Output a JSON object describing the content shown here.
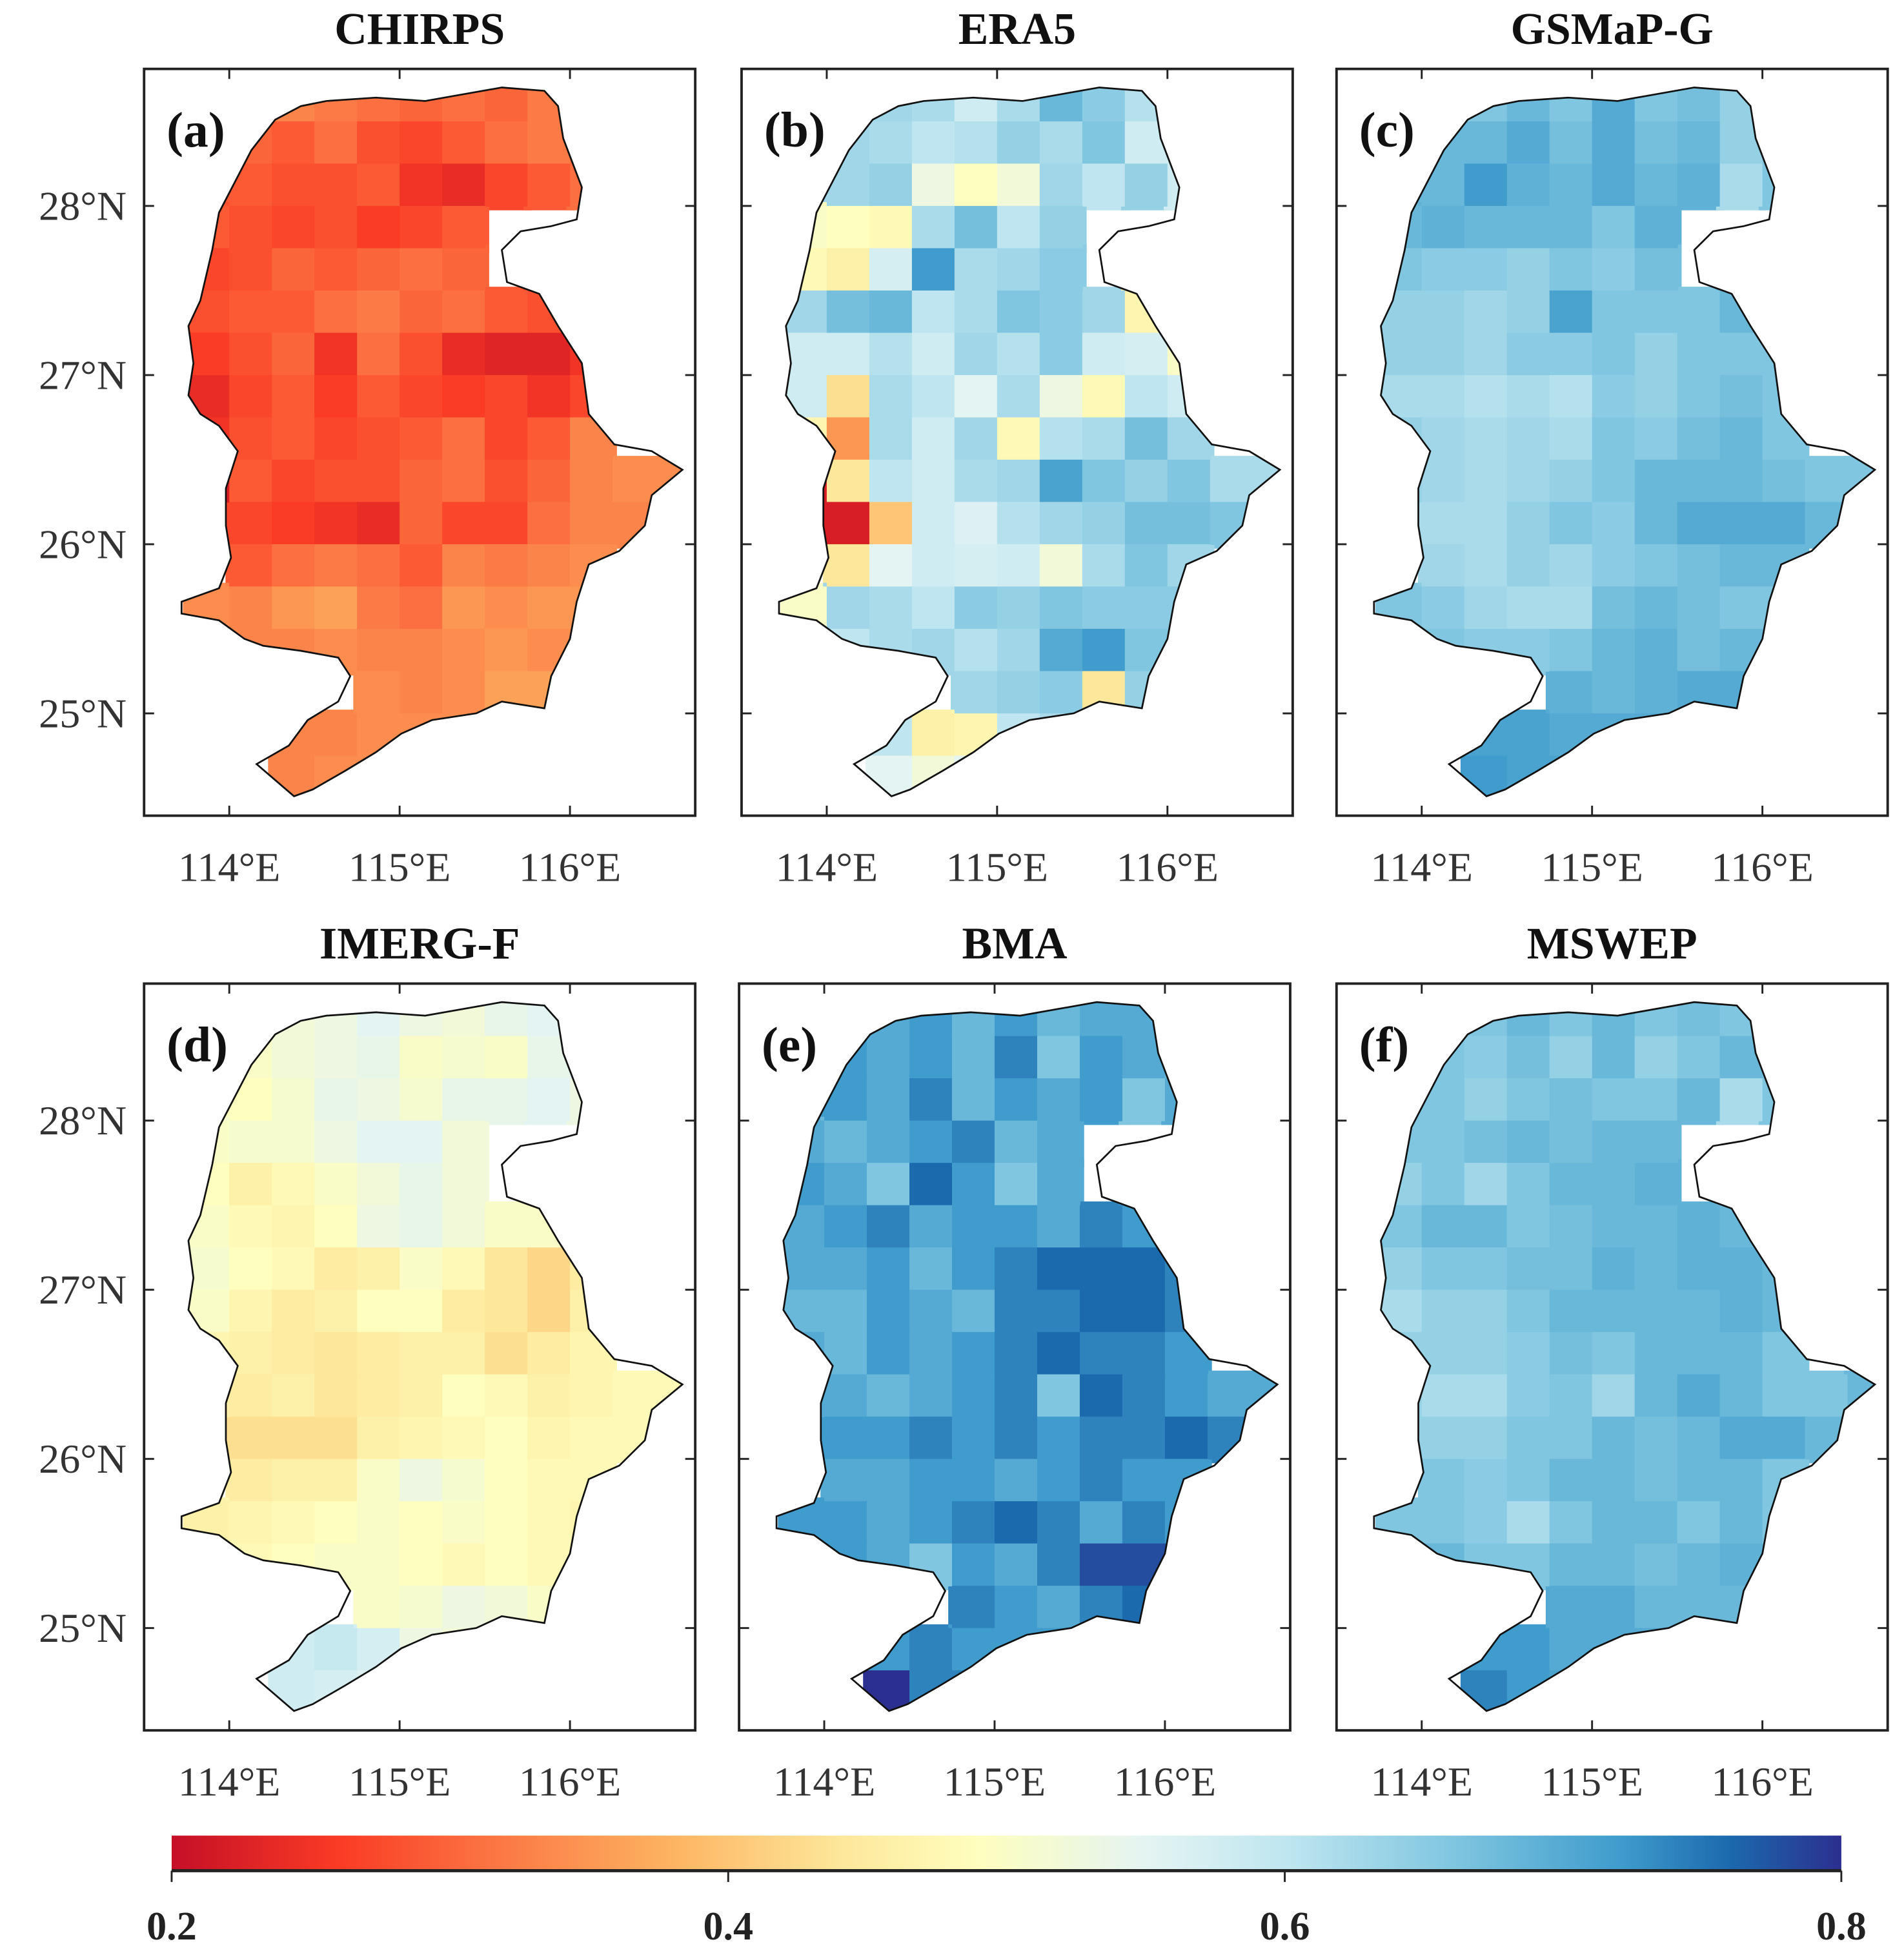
{
  "colorbar": {
    "min": 0.2,
    "max": 0.8,
    "ticks": [
      "0.2",
      "0.4",
      "0.6",
      "0.8"
    ],
    "stops": [
      [
        0.2,
        "#c50f27"
      ],
      [
        0.26,
        "#fa3b25"
      ],
      [
        0.32,
        "#fb7a45"
      ],
      [
        0.38,
        "#fdb462"
      ],
      [
        0.44,
        "#fde79a"
      ],
      [
        0.49,
        "#fefebe"
      ],
      [
        0.55,
        "#e4f4f2"
      ],
      [
        0.6,
        "#bfe6f0"
      ],
      [
        0.66,
        "#80c6e0"
      ],
      [
        0.72,
        "#3f9ccc"
      ],
      [
        0.76,
        "#1c6aae"
      ],
      [
        0.8,
        "#2b2f8f"
      ]
    ]
  },
  "axes": {
    "lon_ticks": [
      114,
      115,
      116
    ],
    "lon_labels": [
      "114°E",
      "115°E",
      "116°E"
    ],
    "lat_ticks": [
      28,
      27,
      26,
      25
    ],
    "lat_labels": [
      "28°N",
      "27°N",
      "26°N",
      "25°N"
    ],
    "lon_range": [
      113.5,
      116.73
    ],
    "lat_range": [
      24.4,
      28.81
    ]
  },
  "grid": {
    "lon_start": 113.75,
    "lat_top": 28.75,
    "res": 0.25,
    "row_start_col": [
      2,
      1,
      1,
      0,
      0,
      0,
      0,
      0,
      0,
      0,
      1,
      1,
      0,
      0,
      4,
      2,
      2
    ]
  },
  "boundary": [
    [
      114.42,
      28.59
    ],
    [
      114.57,
      28.62
    ],
    [
      114.86,
      28.64
    ],
    [
      115.15,
      28.62
    ],
    [
      115.6,
      28.7
    ],
    [
      115.85,
      28.68
    ],
    [
      115.93,
      28.59
    ],
    [
      115.96,
      28.4
    ],
    [
      116.07,
      28.11
    ],
    [
      116.04,
      27.92
    ],
    [
      115.89,
      27.88
    ],
    [
      115.71,
      27.85
    ],
    [
      115.6,
      27.74
    ],
    [
      115.63,
      27.55
    ],
    [
      115.82,
      27.48
    ],
    [
      115.93,
      27.29
    ],
    [
      116.07,
      27.07
    ],
    [
      116.11,
      26.77
    ],
    [
      116.26,
      26.59
    ],
    [
      116.48,
      26.55
    ],
    [
      116.66,
      26.44
    ],
    [
      116.48,
      26.29
    ],
    [
      116.44,
      26.11
    ],
    [
      116.29,
      25.96
    ],
    [
      116.11,
      25.88
    ],
    [
      116.04,
      25.66
    ],
    [
      116.0,
      25.44
    ],
    [
      115.89,
      25.22
    ],
    [
      115.85,
      25.03
    ],
    [
      115.6,
      25.07
    ],
    [
      115.45,
      25.0
    ],
    [
      115.19,
      24.96
    ],
    [
      115.01,
      24.88
    ],
    [
      114.86,
      24.77
    ],
    [
      114.68,
      24.66
    ],
    [
      114.49,
      24.55
    ],
    [
      114.38,
      24.51
    ],
    [
      114.16,
      24.7
    ],
    [
      114.35,
      24.81
    ],
    [
      114.46,
      24.96
    ],
    [
      114.64,
      25.07
    ],
    [
      114.71,
      25.22
    ],
    [
      114.64,
      25.33
    ],
    [
      114.42,
      25.37
    ],
    [
      114.2,
      25.4
    ],
    [
      114.09,
      25.44
    ],
    [
      113.94,
      25.55
    ],
    [
      113.72,
      25.59
    ],
    [
      113.72,
      25.66
    ],
    [
      113.94,
      25.74
    ],
    [
      114.01,
      25.92
    ],
    [
      113.98,
      26.11
    ],
    [
      113.98,
      26.33
    ],
    [
      114.05,
      26.55
    ],
    [
      113.94,
      26.7
    ],
    [
      113.83,
      26.77
    ],
    [
      113.76,
      26.88
    ],
    [
      113.79,
      27.07
    ],
    [
      113.76,
      27.29
    ],
    [
      113.83,
      27.44
    ],
    [
      113.9,
      27.74
    ],
    [
      113.94,
      27.96
    ],
    [
      114.13,
      28.33
    ],
    [
      114.27,
      28.51
    ]
  ],
  "panels": [
    {
      "title": "CHIRPS",
      "label": "(a)",
      "values": [
        [
          0.33,
          0.32,
          0.31,
          0.3,
          0.31,
          0.3,
          0.32
        ],
        [
          0.3,
          0.29,
          0.31,
          0.28,
          0.27,
          0.29,
          0.31,
          0.32,
          0.31
        ],
        [
          0.29,
          0.28,
          0.28,
          0.29,
          0.25,
          0.24,
          0.27,
          0.29,
          0.31
        ],
        [
          0.29,
          0.28,
          0.27,
          0.28,
          0.26,
          0.27,
          0.29
        ],
        [
          0.27,
          0.28,
          0.3,
          0.29,
          0.3,
          0.31,
          0.3
        ],
        [
          0.28,
          0.29,
          0.29,
          0.31,
          0.32,
          0.3,
          0.31,
          0.29,
          0.28
        ],
        [
          0.26,
          0.28,
          0.3,
          0.25,
          0.31,
          0.28,
          0.24,
          0.23,
          0.23,
          0.25
        ],
        [
          0.24,
          0.27,
          0.29,
          0.26,
          0.29,
          0.27,
          0.26,
          0.27,
          0.25,
          0.27
        ],
        [
          0.25,
          0.28,
          0.29,
          0.27,
          0.28,
          0.29,
          0.31,
          0.27,
          0.29,
          0.33
        ],
        [
          0.22,
          0.29,
          0.27,
          0.28,
          0.28,
          0.3,
          0.31,
          0.28,
          0.3,
          0.33,
          0.34,
          0.34
        ],
        [
          0.27,
          0.26,
          0.25,
          0.24,
          0.3,
          0.27,
          0.27,
          0.31,
          0.33,
          0.33
        ],
        [
          0.29,
          0.31,
          0.32,
          0.31,
          0.29,
          0.33,
          0.32,
          0.33,
          0.34
        ],
        [
          0.34,
          0.33,
          0.35,
          0.36,
          0.32,
          0.31,
          0.35,
          0.34,
          0.35,
          0.35
        ],
        [
          0.34,
          0.33,
          0.33,
          0.34,
          0.33,
          0.33,
          0.34,
          0.35,
          0.34
        ],
        [
          0.34,
          0.33,
          0.34,
          0.36,
          0.36
        ],
        [
          0.33,
          0.33,
          0.34,
          0.34,
          0.34
        ],
        [
          0.33,
          0.34,
          0.34
        ]
      ]
    },
    {
      "title": "ERA5",
      "label": "(b)",
      "values": [
        [
          0.63,
          0.62,
          0.58,
          0.62,
          0.68,
          0.65,
          0.61
        ],
        [
          0.63,
          0.62,
          0.6,
          0.61,
          0.64,
          0.62,
          0.66,
          0.58,
          0.58
        ],
        [
          0.63,
          0.64,
          0.53,
          0.49,
          0.52,
          0.63,
          0.6,
          0.64,
          0.58
        ],
        [
          0.5,
          0.49,
          0.48,
          0.62,
          0.67,
          0.6,
          0.64
        ],
        [
          0.48,
          0.46,
          0.57,
          0.72,
          0.62,
          0.63,
          0.65
        ],
        [
          0.63,
          0.67,
          0.68,
          0.6,
          0.62,
          0.66,
          0.65,
          0.63,
          0.47
        ],
        [
          0.58,
          0.58,
          0.61,
          0.58,
          0.63,
          0.61,
          0.65,
          0.58,
          0.57,
          0.5
        ],
        [
          0.58,
          0.43,
          0.62,
          0.6,
          0.55,
          0.62,
          0.53,
          0.48,
          0.6,
          0.58
        ],
        [
          0.47,
          0.35,
          0.62,
          0.58,
          0.63,
          0.48,
          0.61,
          0.62,
          0.67,
          0.63
        ],
        [
          0.22,
          0.44,
          0.6,
          0.58,
          0.62,
          0.63,
          0.71,
          0.66,
          0.64,
          0.66,
          0.62,
          0.62
        ],
        [
          0.22,
          0.4,
          0.58,
          0.56,
          0.61,
          0.63,
          0.64,
          0.67,
          0.67,
          0.66
        ],
        [
          0.44,
          0.55,
          0.58,
          0.57,
          0.58,
          0.52,
          0.62,
          0.66,
          0.63
        ],
        [
          0.5,
          0.63,
          0.62,
          0.6,
          0.65,
          0.64,
          0.66,
          0.65,
          0.65,
          0.65
        ],
        [
          0.57,
          0.6,
          0.62,
          0.63,
          0.61,
          0.63,
          0.7,
          0.72,
          0.66
        ],
        [
          0.63,
          0.64,
          0.65,
          0.44,
          0.64
        ],
        [
          0.6,
          0.46,
          0.47,
          0.6,
          0.62
        ],
        [
          0.55,
          0.52,
          0.55
        ]
      ]
    },
    {
      "title": "GSMaP-G",
      "label": "(c)",
      "values": [
        [
          0.66,
          0.68,
          0.66,
          0.7,
          0.66,
          0.67,
          0.64
        ],
        [
          0.68,
          0.68,
          0.7,
          0.67,
          0.7,
          0.67,
          0.68,
          0.64,
          0.66
        ],
        [
          0.68,
          0.72,
          0.69,
          0.68,
          0.7,
          0.68,
          0.69,
          0.62,
          0.66
        ],
        [
          0.68,
          0.69,
          0.68,
          0.68,
          0.68,
          0.66,
          0.69
        ],
        [
          0.66,
          0.65,
          0.65,
          0.64,
          0.66,
          0.65,
          0.67
        ],
        [
          0.64,
          0.64,
          0.63,
          0.64,
          0.71,
          0.66,
          0.66,
          0.66,
          0.68
        ],
        [
          0.64,
          0.64,
          0.63,
          0.65,
          0.65,
          0.66,
          0.64,
          0.66,
          0.66,
          0.66
        ],
        [
          0.62,
          0.62,
          0.61,
          0.62,
          0.61,
          0.65,
          0.64,
          0.66,
          0.67,
          0.66
        ],
        [
          0.64,
          0.63,
          0.62,
          0.63,
          0.62,
          0.66,
          0.65,
          0.67,
          0.68,
          0.66
        ],
        [
          0.64,
          0.63,
          0.62,
          0.63,
          0.64,
          0.66,
          0.68,
          0.68,
          0.68,
          0.67,
          0.66,
          0.66
        ],
        [
          0.62,
          0.62,
          0.64,
          0.66,
          0.65,
          0.68,
          0.7,
          0.7,
          0.7,
          0.68
        ],
        [
          0.63,
          0.62,
          0.64,
          0.63,
          0.65,
          0.66,
          0.67,
          0.68,
          0.68
        ],
        [
          0.66,
          0.65,
          0.63,
          0.62,
          0.62,
          0.67,
          0.68,
          0.67,
          0.66,
          0.66
        ],
        [
          0.67,
          0.66,
          0.65,
          0.65,
          0.66,
          0.68,
          0.69,
          0.67,
          0.68
        ],
        [
          0.69,
          0.68,
          0.69,
          0.7,
          0.7
        ],
        [
          0.71,
          0.71,
          0.7,
          0.7,
          0.7
        ],
        [
          0.72,
          0.71,
          0.71
        ]
      ]
    },
    {
      "title": "IMERG-F",
      "label": "(d)",
      "values": [
        [
          0.52,
          0.53,
          0.55,
          0.53,
          0.52,
          0.54,
          0.55
        ],
        [
          0.5,
          0.52,
          0.53,
          0.54,
          0.5,
          0.51,
          0.5,
          0.54,
          0.56
        ],
        [
          0.49,
          0.51,
          0.54,
          0.53,
          0.51,
          0.54,
          0.54,
          0.55,
          0.53
        ],
        [
          0.5,
          0.51,
          0.51,
          0.53,
          0.55,
          0.55,
          0.52
        ],
        [
          0.49,
          0.46,
          0.48,
          0.5,
          0.52,
          0.54,
          0.52
        ],
        [
          0.5,
          0.48,
          0.47,
          0.49,
          0.53,
          0.54,
          0.52,
          0.5,
          0.5
        ],
        [
          0.51,
          0.49,
          0.48,
          0.45,
          0.46,
          0.5,
          0.48,
          0.44,
          0.42,
          0.45
        ],
        [
          0.5,
          0.47,
          0.45,
          0.46,
          0.49,
          0.49,
          0.45,
          0.44,
          0.42,
          0.46
        ],
        [
          0.47,
          0.46,
          0.45,
          0.44,
          0.45,
          0.46,
          0.46,
          0.43,
          0.45,
          0.47
        ],
        [
          0.46,
          0.45,
          0.46,
          0.44,
          0.45,
          0.46,
          0.49,
          0.48,
          0.46,
          0.47,
          0.48,
          0.48
        ],
        [
          0.43,
          0.43,
          0.43,
          0.46,
          0.47,
          0.48,
          0.49,
          0.47,
          0.48,
          0.48
        ],
        [
          0.45,
          0.46,
          0.46,
          0.5,
          0.53,
          0.51,
          0.49,
          0.48,
          0.48
        ],
        [
          0.46,
          0.47,
          0.48,
          0.49,
          0.5,
          0.49,
          0.5,
          0.49,
          0.48,
          0.47
        ],
        [
          0.47,
          0.48,
          0.49,
          0.5,
          0.5,
          0.49,
          0.48,
          0.49,
          0.48
        ],
        [
          0.5,
          0.51,
          0.53,
          0.52,
          0.5
        ],
        [
          0.58,
          0.59,
          0.57,
          0.53,
          0.52
        ],
        [
          0.58,
          0.57,
          0.56
        ]
      ]
    },
    {
      "title": "BMA",
      "label": "(e)",
      "values": [
        [
          0.7,
          0.72,
          0.68,
          0.72,
          0.68,
          0.7,
          0.7
        ],
        [
          0.72,
          0.7,
          0.72,
          0.68,
          0.74,
          0.66,
          0.72,
          0.7,
          0.68
        ],
        [
          0.72,
          0.7,
          0.74,
          0.68,
          0.72,
          0.7,
          0.72,
          0.66,
          0.7
        ],
        [
          0.7,
          0.68,
          0.7,
          0.72,
          0.74,
          0.68,
          0.7
        ],
        [
          0.72,
          0.7,
          0.66,
          0.76,
          0.72,
          0.66,
          0.7
        ],
        [
          0.7,
          0.72,
          0.74,
          0.7,
          0.72,
          0.72,
          0.7,
          0.74,
          0.72
        ],
        [
          0.7,
          0.7,
          0.72,
          0.68,
          0.72,
          0.74,
          0.76,
          0.76,
          0.76,
          0.74
        ],
        [
          0.68,
          0.68,
          0.72,
          0.7,
          0.68,
          0.74,
          0.74,
          0.76,
          0.76,
          0.74
        ],
        [
          0.7,
          0.68,
          0.72,
          0.7,
          0.72,
          0.74,
          0.76,
          0.74,
          0.74,
          0.72
        ],
        [
          0.7,
          0.7,
          0.68,
          0.7,
          0.72,
          0.74,
          0.66,
          0.76,
          0.74,
          0.72,
          0.7,
          0.7
        ],
        [
          0.72,
          0.72,
          0.74,
          0.72,
          0.74,
          0.72,
          0.74,
          0.74,
          0.76,
          0.74
        ],
        [
          0.7,
          0.7,
          0.72,
          0.72,
          0.7,
          0.72,
          0.74,
          0.72,
          0.72
        ],
        [
          0.72,
          0.72,
          0.7,
          0.72,
          0.74,
          0.76,
          0.74,
          0.7,
          0.74,
          0.72
        ],
        [
          0.72,
          0.72,
          0.7,
          0.66,
          0.72,
          0.7,
          0.74,
          0.78,
          0.78
        ],
        [
          0.74,
          0.72,
          0.7,
          0.74,
          0.76
        ],
        [
          0.72,
          0.74,
          0.72,
          0.72,
          0.72
        ],
        [
          0.8,
          0.74,
          0.74
        ]
      ]
    },
    {
      "title": "MSWEP",
      "label": "(f)",
      "values": [
        [
          0.66,
          0.68,
          0.66,
          0.68,
          0.66,
          0.67,
          0.66
        ],
        [
          0.66,
          0.65,
          0.67,
          0.64,
          0.68,
          0.64,
          0.66,
          0.68,
          0.67
        ],
        [
          0.66,
          0.64,
          0.66,
          0.67,
          0.66,
          0.66,
          0.68,
          0.62,
          0.66
        ],
        [
          0.66,
          0.66,
          0.67,
          0.68,
          0.67,
          0.68,
          0.68
        ],
        [
          0.64,
          0.66,
          0.63,
          0.66,
          0.68,
          0.68,
          0.69
        ],
        [
          0.66,
          0.68,
          0.68,
          0.66,
          0.67,
          0.68,
          0.68,
          0.69,
          0.68
        ],
        [
          0.64,
          0.66,
          0.66,
          0.67,
          0.67,
          0.69,
          0.68,
          0.69,
          0.69,
          0.68
        ],
        [
          0.62,
          0.64,
          0.64,
          0.66,
          0.68,
          0.68,
          0.68,
          0.68,
          0.69,
          0.68
        ],
        [
          0.64,
          0.64,
          0.64,
          0.65,
          0.67,
          0.66,
          0.68,
          0.68,
          0.68,
          0.66
        ],
        [
          0.64,
          0.62,
          0.62,
          0.65,
          0.66,
          0.63,
          0.68,
          0.7,
          0.68,
          0.66,
          0.66,
          0.68
        ],
        [
          0.64,
          0.64,
          0.66,
          0.66,
          0.68,
          0.67,
          0.68,
          0.7,
          0.7,
          0.68
        ],
        [
          0.66,
          0.65,
          0.66,
          0.68,
          0.68,
          0.67,
          0.68,
          0.68,
          0.66
        ],
        [
          0.66,
          0.66,
          0.65,
          0.62,
          0.66,
          0.68,
          0.68,
          0.66,
          0.68,
          0.66
        ],
        [
          0.68,
          0.68,
          0.66,
          0.66,
          0.68,
          0.68,
          0.67,
          0.68,
          0.69
        ],
        [
          0.7,
          0.7,
          0.68,
          0.68,
          0.68
        ],
        [
          0.72,
          0.72,
          0.7,
          0.7,
          0.7
        ],
        [
          0.74,
          0.72,
          0.71
        ]
      ]
    }
  ]
}
